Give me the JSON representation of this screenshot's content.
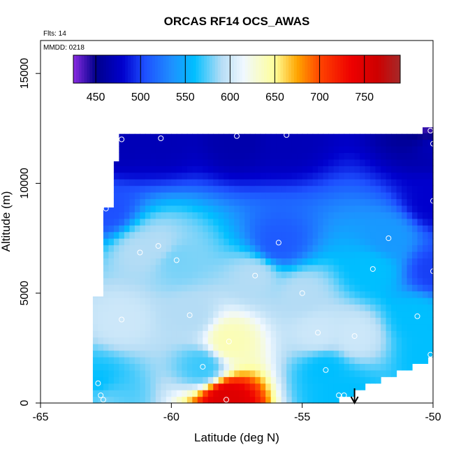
{
  "chart_data": {
    "type": "heatmap",
    "title": "ORCAS RF14 OCS_AWAS",
    "flights_label": "Flts: 14",
    "date_label": "MMDD: 0218",
    "xlabel": "Latitude (deg N)",
    "ylabel": "Altitude (m)",
    "xlim": [
      -65,
      -50
    ],
    "ylim": [
      0,
      16500
    ],
    "x_ticks": [
      -65,
      -60,
      -55,
      -50
    ],
    "x_tick_labels": [
      "-65",
      "-60",
      "-55",
      "-50"
    ],
    "y_ticks": [
      0,
      5000,
      10000,
      15000
    ],
    "y_tick_labels": [
      "0",
      "5000",
      "10000",
      "15000"
    ],
    "colorbar": {
      "range": [
        425,
        790
      ],
      "ticks": [
        450,
        500,
        550,
        600,
        650,
        700,
        750
      ],
      "tick_labels": [
        "450",
        "500",
        "550",
        "600",
        "650",
        "700",
        "750"
      ],
      "stops": [
        {
          "v": 425,
          "c": "#8a2be2"
        },
        {
          "v": 450,
          "c": "#00008b"
        },
        {
          "v": 480,
          "c": "#0000cd"
        },
        {
          "v": 505,
          "c": "#1e50ff"
        },
        {
          "v": 535,
          "c": "#1e90ff"
        },
        {
          "v": 560,
          "c": "#00bfff"
        },
        {
          "v": 590,
          "c": "#b4dcf5"
        },
        {
          "v": 615,
          "c": "#f0f8ff"
        },
        {
          "v": 650,
          "c": "#ffff99"
        },
        {
          "v": 675,
          "c": "#ffa500"
        },
        {
          "v": 700,
          "c": "#ff4500"
        },
        {
          "v": 735,
          "c": "#ee0000"
        },
        {
          "v": 765,
          "c": "#cd0000"
        },
        {
          "v": 790,
          "c": "#a52a2a"
        }
      ]
    },
    "samples": [
      {
        "lat": -62.8,
        "alt": 900,
        "v": 560
      },
      {
        "lat": -62.7,
        "alt": 350,
        "v": 570
      },
      {
        "lat": -62.6,
        "alt": 150,
        "v": 580
      },
      {
        "lat": -62.5,
        "alt": 8850,
        "v": 505
      },
      {
        "lat": -62.1,
        "alt": 12000,
        "v": 470
      },
      {
        "lat": -61.9,
        "alt": 12000,
        "v": 470
      },
      {
        "lat": -61.9,
        "alt": 3800,
        "v": 600
      },
      {
        "lat": -61.2,
        "alt": 6850,
        "v": 590
      },
      {
        "lat": -60.5,
        "alt": 7150,
        "v": 590
      },
      {
        "lat": -60.4,
        "alt": 12050,
        "v": 470
      },
      {
        "lat": -59.8,
        "alt": 6500,
        "v": 580
      },
      {
        "lat": -59.3,
        "alt": 4000,
        "v": 590
      },
      {
        "lat": -58.8,
        "alt": 1650,
        "v": 570
      },
      {
        "lat": -57.9,
        "alt": 150,
        "v": 750
      },
      {
        "lat": -57.8,
        "alt": 2800,
        "v": 640
      },
      {
        "lat": -57.5,
        "alt": 12150,
        "v": 465
      },
      {
        "lat": -56.8,
        "alt": 5800,
        "v": 590
      },
      {
        "lat": -55.9,
        "alt": 7300,
        "v": 510
      },
      {
        "lat": -55.6,
        "alt": 12200,
        "v": 470
      },
      {
        "lat": -55.0,
        "alt": 5000,
        "v": 590
      },
      {
        "lat": -54.4,
        "alt": 3200,
        "v": 600
      },
      {
        "lat": -54.1,
        "alt": 1500,
        "v": 560
      },
      {
        "lat": -53.6,
        "alt": 350,
        "v": 560
      },
      {
        "lat": -53.4,
        "alt": 350,
        "v": 560
      },
      {
        "lat": -53.0,
        "alt": 3050,
        "v": 600
      },
      {
        "lat": -52.3,
        "alt": 6100,
        "v": 560
      },
      {
        "lat": -51.7,
        "alt": 7500,
        "v": 540
      },
      {
        "lat": -50.6,
        "alt": 3950,
        "v": 560
      },
      {
        "lat": -50.1,
        "alt": 2200,
        "v": 560
      },
      {
        "lat": -50.0,
        "alt": 6000,
        "v": 500
      },
      {
        "lat": -50.0,
        "alt": 9200,
        "v": 480
      },
      {
        "lat": -50.0,
        "alt": 11800,
        "v": 470
      },
      {
        "lat": -50.1,
        "alt": 12400,
        "v": 440
      }
    ],
    "marker": {
      "lat": -53.0,
      "direction": "down"
    }
  }
}
